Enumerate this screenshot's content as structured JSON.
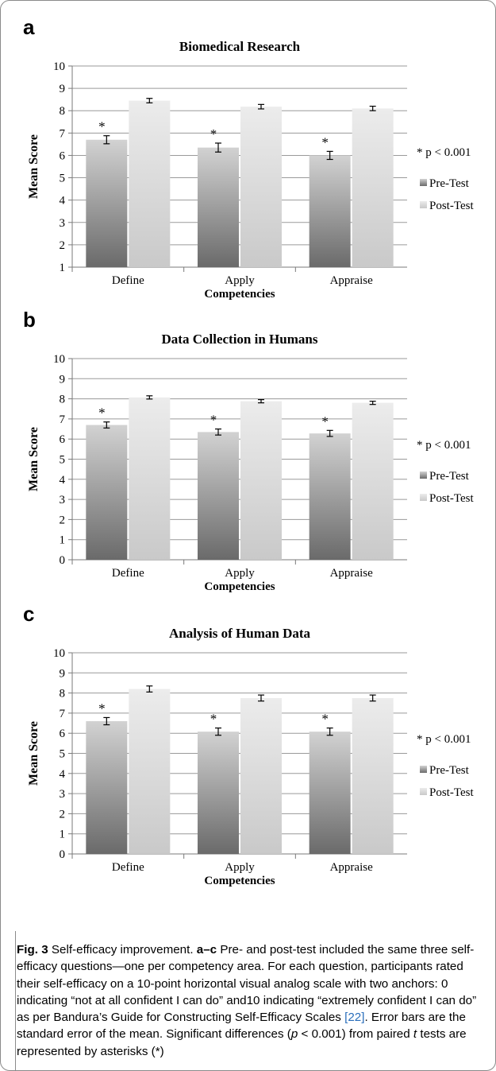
{
  "chart_data": [
    {
      "panel": "a",
      "type": "bar",
      "title": "Biomedical Research",
      "xlabel": "Competencies",
      "ylabel": "Mean Score",
      "ylim": [
        1,
        10
      ],
      "yticks": [
        "1",
        "2",
        "3",
        "4",
        "5",
        "6",
        "7",
        "8",
        "9",
        "10"
      ],
      "categories": [
        "Define",
        "Apply",
        "Appraise"
      ],
      "series": [
        {
          "name": "Pre-Test",
          "values": [
            6.7,
            6.35,
            6.0
          ],
          "errors": [
            0.18,
            0.2,
            0.18
          ],
          "markers": [
            "*",
            "*",
            "*"
          ]
        },
        {
          "name": "Post-Test",
          "values": [
            8.45,
            8.18,
            8.1
          ],
          "errors": [
            0.1,
            0.1,
            0.1
          ]
        }
      ],
      "annotation": "* p < 0.001",
      "legend": "right",
      "grid": true
    },
    {
      "panel": "b",
      "type": "bar",
      "title": "Data Collection in Humans",
      "xlabel": "Competencies",
      "ylabel": "Mean Score",
      "ylim": [
        0,
        10
      ],
      "yticks": [
        "0",
        "1",
        "2",
        "3",
        "4",
        "5",
        "6",
        "7",
        "8",
        "9",
        "10"
      ],
      "categories": [
        "Define",
        "Apply",
        "Appraise"
      ],
      "series": [
        {
          "name": "Pre-Test",
          "values": [
            6.7,
            6.35,
            6.28
          ],
          "errors": [
            0.15,
            0.15,
            0.15
          ],
          "markers": [
            "*",
            "*",
            "*"
          ]
        },
        {
          "name": "Post-Test",
          "values": [
            8.07,
            7.88,
            7.8
          ],
          "errors": [
            0.08,
            0.08,
            0.08
          ]
        }
      ],
      "annotation": "* p < 0.001",
      "legend": "right",
      "grid": true
    },
    {
      "panel": "c",
      "type": "bar",
      "title": "Analysis of Human Data",
      "xlabel": "Competencies",
      "ylabel": "Mean Score",
      "ylim": [
        0,
        10
      ],
      "yticks": [
        "0",
        "1",
        "2",
        "3",
        "4",
        "5",
        "6",
        "7",
        "8",
        "9",
        "10"
      ],
      "categories": [
        "Define",
        "Apply",
        "Appraise"
      ],
      "series": [
        {
          "name": "Pre-Test",
          "values": [
            6.6,
            6.08,
            6.08
          ],
          "errors": [
            0.18,
            0.18,
            0.18
          ],
          "markers": [
            "*",
            "*",
            "*"
          ]
        },
        {
          "name": "Post-Test",
          "values": [
            8.2,
            7.75,
            7.75
          ],
          "errors": [
            0.15,
            0.15,
            0.15
          ]
        }
      ],
      "annotation": "* p < 0.001",
      "legend": "right",
      "grid": true
    }
  ],
  "caption": {
    "fig_label": "Fig. 3",
    "t1": " Self-efficacy improvement. ",
    "range_label": "a–c",
    "t2": " Pre- and post-test included the same three self-efficacy questions—one per competency area. For each question, participants rated their self-efficacy on a 10-point horizontal visual analog scale with two anchors: 0 indicating “not at all confident I can do” and10 indicating “extremely confident I can do” as per Bandura’s Guide for Constructing Self-Efficacy Scales ",
    "ref": "[22]",
    "t3": ". Error bars are the standard error of the mean. Significant differences (",
    "p": "p",
    "t4": " < 0.001) from paired ",
    "t": "t",
    "t5": " tests are represented by asterisks (*)"
  }
}
